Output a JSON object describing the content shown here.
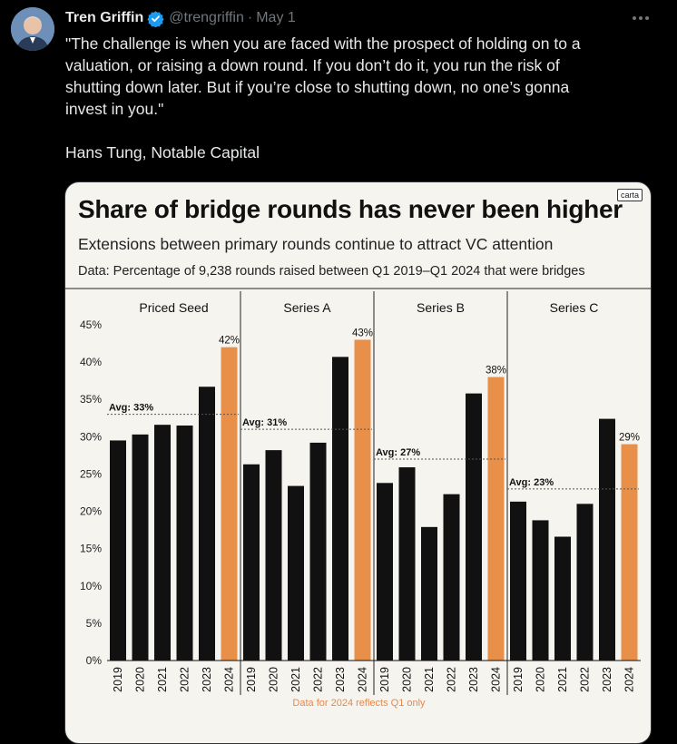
{
  "tweet": {
    "author_name": "Tren Griffin",
    "handle": "@trengriffin",
    "separator": "·",
    "date": "May 1",
    "text_lines": [
      "\"The challenge is when you are faced with the prospect of holding on to a",
      "valuation, or raising a down round. If you don’t do it, you run the risk of",
      "shutting down later. But if you’re close to shutting down, no one’s gonna",
      "invest in you.\""
    ],
    "attribution": "Hans Tung, Notable Capital"
  },
  "icons": {
    "avatar": "avatar-photo",
    "verified": "verified-badge-icon",
    "more": "more-options-icon"
  },
  "colors": {
    "background": "#000000",
    "text": "#e7e9ea",
    "muted": "#71767b",
    "verified_blue": "#1d9bf0",
    "bar_default": "#111111",
    "bar_highlight": "#e8904a"
  },
  "chart_data": {
    "type": "bar",
    "title": "Share of bridge rounds has never been higher",
    "subtitle": "Extensions between primary rounds continue to attract VC attention",
    "note": "Data: Percentage of 9,238 rounds raised between Q1 2019–Q1 2024 that were bridges",
    "brand": "carta",
    "footnote": "Data for 2024 reflects Q1 only",
    "ylim": [
      0,
      45
    ],
    "yticks": [
      "0%",
      "5%",
      "10%",
      "15%",
      "20%",
      "25%",
      "30%",
      "35%",
      "40%",
      "45%"
    ],
    "grid": false,
    "categories": [
      "2019",
      "2020",
      "2021",
      "2022",
      "2023",
      "2024"
    ],
    "panels": [
      {
        "name": "Priced Seed",
        "avg": 33,
        "avg_label": "Avg: 33%",
        "values": [
          29.5,
          30.3,
          31.6,
          31.5,
          36.7,
          42
        ],
        "last_label": "42%"
      },
      {
        "name": "Series A",
        "avg": 31,
        "avg_label": "Avg: 31%",
        "values": [
          26.3,
          28.2,
          23.4,
          29.2,
          40.7,
          43
        ],
        "last_label": "43%"
      },
      {
        "name": "Series B",
        "avg": 27,
        "avg_label": "Avg: 27%",
        "values": [
          23.8,
          25.9,
          17.9,
          22.3,
          35.8,
          38
        ],
        "last_label": "38%"
      },
      {
        "name": "Series C",
        "avg": 23,
        "avg_label": "Avg: 23%",
        "values": [
          21.3,
          18.8,
          16.6,
          21.0,
          32.4,
          29
        ],
        "last_label": "29%"
      }
    ]
  }
}
